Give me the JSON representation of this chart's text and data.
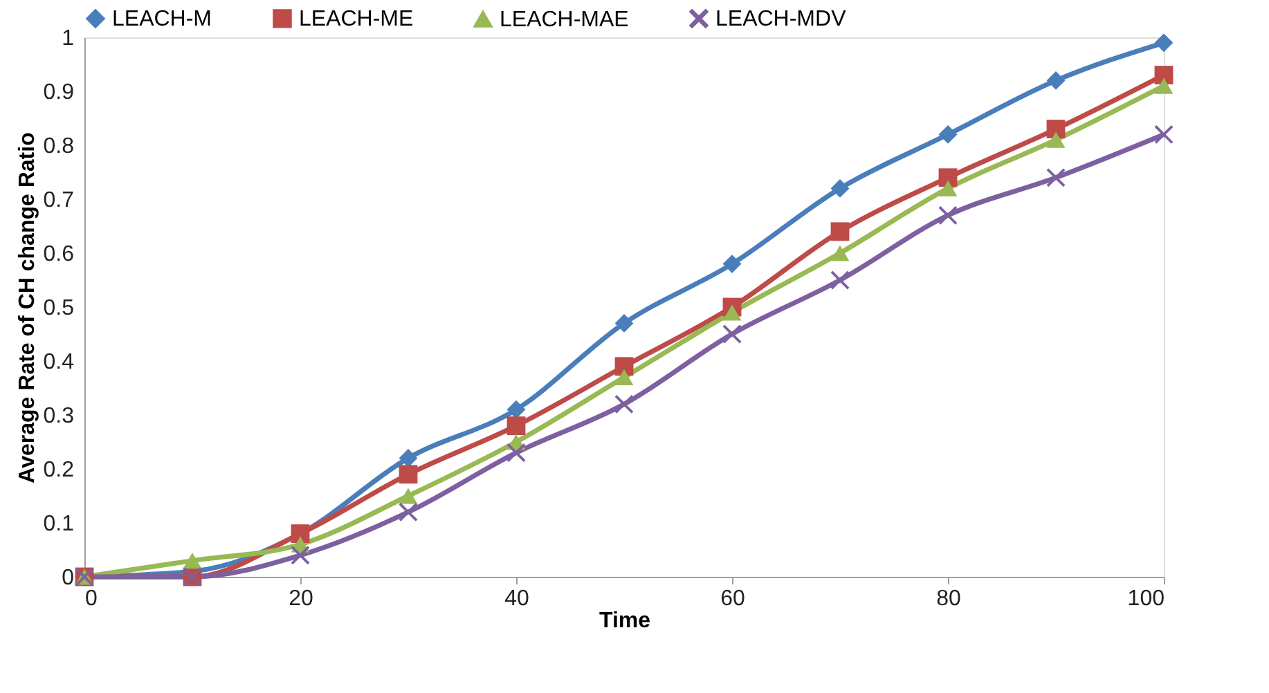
{
  "chart_data": {
    "type": "line",
    "xlabel": "Time",
    "ylabel": "Average Rate of CH change Ratio",
    "x": [
      0,
      10,
      20,
      30,
      40,
      50,
      60,
      70,
      80,
      90,
      100
    ],
    "series": [
      {
        "name": "LEACH-M",
        "color": "#4a7ebb",
        "marker": "diamond",
        "values": [
          0,
          0.01,
          0.08,
          0.22,
          0.31,
          0.47,
          0.58,
          0.72,
          0.82,
          0.92,
          0.99
        ]
      },
      {
        "name": "LEACH-ME",
        "color": "#be4b48",
        "marker": "square",
        "values": [
          0,
          0,
          0.08,
          0.19,
          0.28,
          0.39,
          0.5,
          0.64,
          0.74,
          0.83,
          0.93
        ]
      },
      {
        "name": "LEACH-MAE",
        "color": "#98b954",
        "marker": "triangle",
        "values": [
          0,
          0.03,
          0.06,
          0.15,
          0.25,
          0.37,
          0.49,
          0.6,
          0.72,
          0.81,
          0.91
        ]
      },
      {
        "name": "LEACH-MDV",
        "color": "#7d60a0",
        "marker": "cross",
        "values": [
          0,
          0,
          0.04,
          0.12,
          0.23,
          0.32,
          0.45,
          0.55,
          0.67,
          0.74,
          0.82
        ]
      }
    ],
    "xlim": [
      0,
      100
    ],
    "xticks": [
      0,
      20,
      40,
      60,
      80,
      100
    ],
    "ylim": [
      0,
      1
    ],
    "yticks": [
      0,
      0.1,
      0.2,
      0.3,
      0.4,
      0.5,
      0.6,
      0.7,
      0.8,
      0.9,
      1
    ],
    "grid": false,
    "legend": "top",
    "line_style": "solid"
  }
}
